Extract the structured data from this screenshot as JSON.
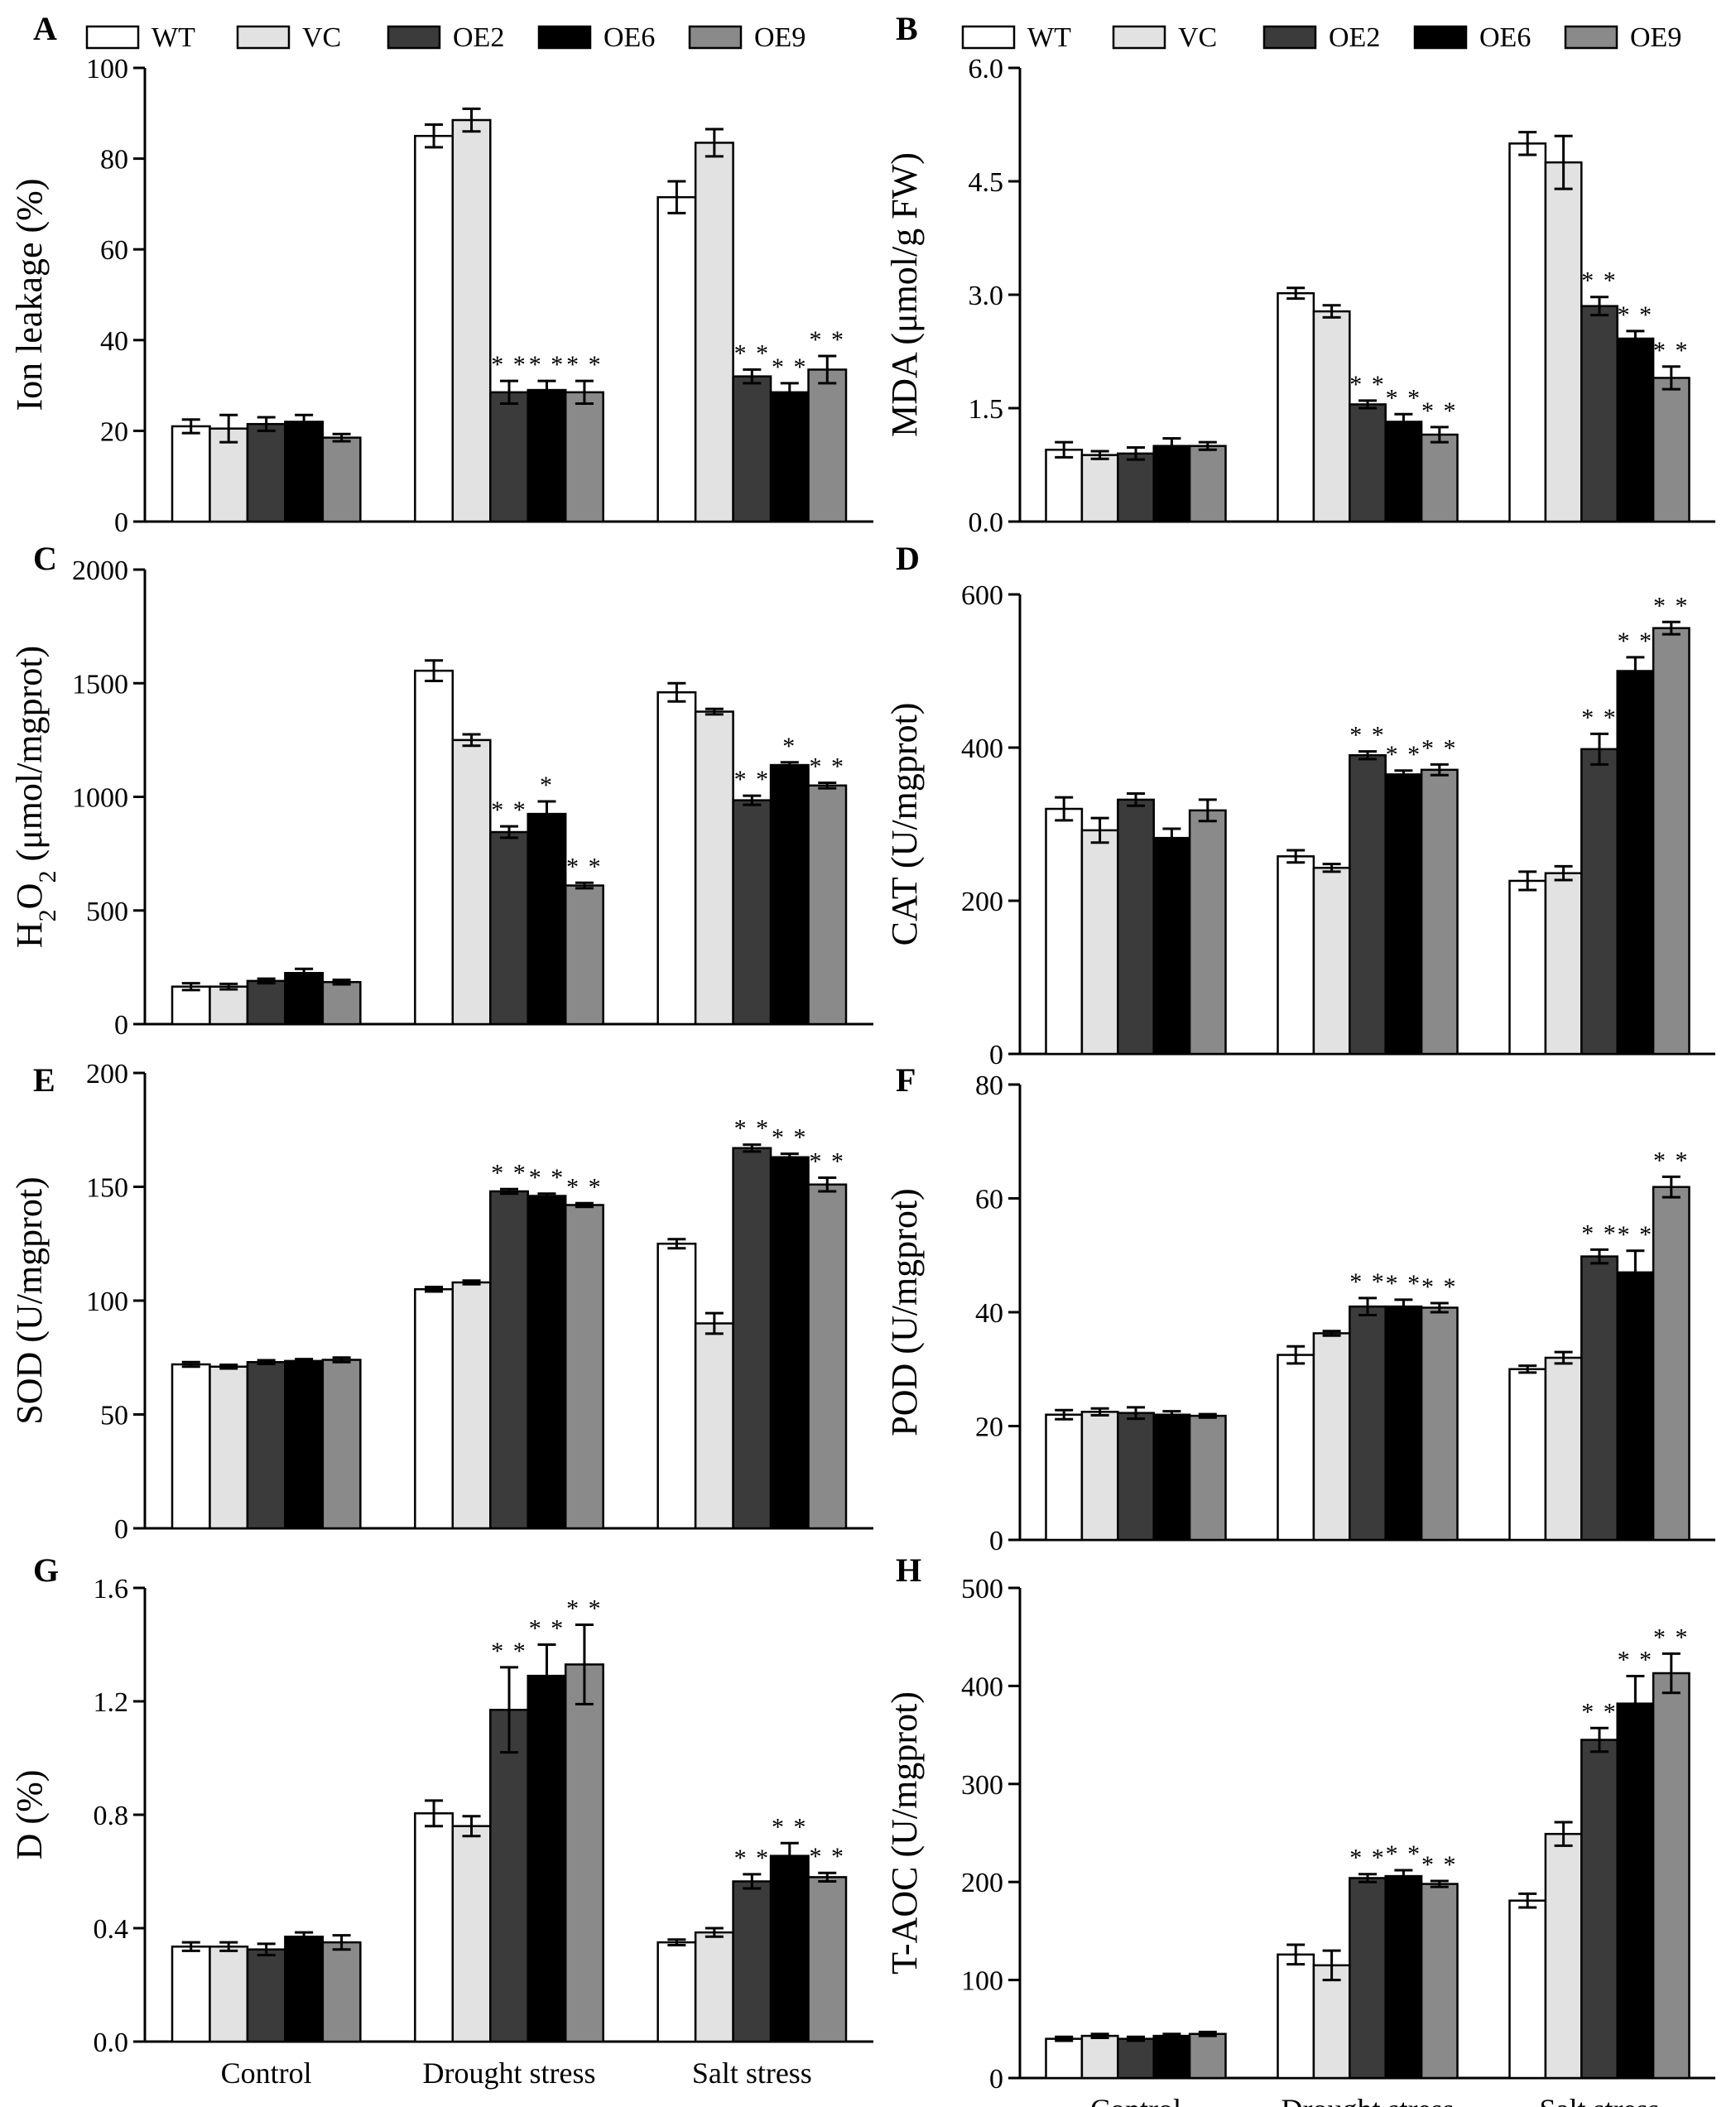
{
  "legend": [
    {
      "name": "WT",
      "color": "#ffffff"
    },
    {
      "name": "VC",
      "color": "#e2e2e2"
    },
    {
      "name": "OE2",
      "color": "#3b3b3b"
    },
    {
      "name": "OE6",
      "color": "#000000"
    },
    {
      "name": "OE9",
      "color": "#8a8a8a"
    }
  ],
  "categories": [
    "Control",
    "Drought stress",
    "Salt stress"
  ],
  "chart_data": [
    {
      "type": "bar",
      "panel": "A",
      "ylabel": "Ion leakage (%)",
      "ylim": [
        0,
        100
      ],
      "yticks": [
        "0",
        "20",
        "40",
        "60",
        "80",
        "100"
      ],
      "values": [
        [
          21,
          20.5,
          21.5,
          22,
          18.5
        ],
        [
          85,
          88.5,
          28.5,
          29,
          28.5
        ],
        [
          71.5,
          83.5,
          32,
          28.5,
          33.5
        ]
      ],
      "errors": [
        [
          1.5,
          3,
          1.5,
          1.5,
          0.8
        ],
        [
          2.5,
          2.5,
          2.5,
          2,
          2.5
        ],
        [
          3.5,
          3,
          1.5,
          2,
          3
        ]
      ],
      "marks": [
        [
          "",
          "",
          "",
          "",
          ""
        ],
        [
          "",
          "",
          "**",
          "**",
          "**"
        ],
        [
          "",
          "",
          "**",
          "**",
          "**"
        ]
      ]
    },
    {
      "type": "bar",
      "panel": "B",
      "ylabel": "MDA (μmol/g FW)",
      "ylim": [
        0,
        6
      ],
      "yticks": [
        "0.0",
        "1.5",
        "3.0",
        "4.5",
        "6.0"
      ],
      "values": [
        [
          0.95,
          0.88,
          0.9,
          1.0,
          1.0
        ],
        [
          3.02,
          2.78,
          1.55,
          1.32,
          1.15
        ],
        [
          5.0,
          4.75,
          2.85,
          2.42,
          1.9
        ]
      ],
      "errors": [
        [
          0.1,
          0.05,
          0.08,
          0.1,
          0.05
        ],
        [
          0.07,
          0.08,
          0.05,
          0.1,
          0.1
        ],
        [
          0.15,
          0.35,
          0.12,
          0.1,
          0.15
        ]
      ],
      "marks": [
        [
          "",
          "",
          "",
          "",
          ""
        ],
        [
          "",
          "",
          "**",
          "**",
          "**"
        ],
        [
          "",
          "",
          "**",
          "**",
          "**"
        ]
      ]
    },
    {
      "type": "bar",
      "panel": "C",
      "ylabel": "H2O2 (μmol/mgprot)",
      "ylim": [
        0,
        2000
      ],
      "yticks": [
        "0",
        "500",
        "1000",
        "1500",
        "2000"
      ],
      "values": [
        [
          165,
          165,
          190,
          225,
          185
        ],
        [
          1555,
          1250,
          845,
          925,
          610
        ],
        [
          1460,
          1375,
          985,
          1140,
          1050
        ]
      ],
      "errors": [
        [
          15,
          12,
          10,
          18,
          10
        ],
        [
          45,
          25,
          25,
          55,
          12
        ],
        [
          40,
          12,
          20,
          12,
          12
        ]
      ],
      "marks": [
        [
          "",
          "",
          "",
          "",
          ""
        ],
        [
          "",
          "",
          "**",
          "*",
          "**"
        ],
        [
          "",
          "",
          "**",
          "*",
          "**"
        ]
      ]
    },
    {
      "type": "bar",
      "panel": "D",
      "ylabel": "CAT (U/mgprot)",
      "ylim": [
        0,
        600
      ],
      "yticks": [
        "0",
        "200",
        "400",
        "600"
      ],
      "values": [
        [
          320,
          292,
          332,
          282,
          318
        ],
        [
          258,
          243,
          390,
          365,
          371
        ],
        [
          226,
          236,
          398,
          500,
          556
        ]
      ],
      "errors": [
        [
          15,
          16,
          8,
          12,
          14
        ],
        [
          8,
          5,
          5,
          5,
          7
        ],
        [
          12,
          9,
          20,
          18,
          8
        ]
      ],
      "marks": [
        [
          "",
          "",
          "",
          "",
          ""
        ],
        [
          "",
          "",
          "**",
          "**",
          "**"
        ],
        [
          "",
          "",
          "**",
          "**",
          "**"
        ]
      ]
    },
    {
      "type": "bar",
      "panel": "E",
      "ylabel": "SOD (U/mgprot)",
      "ylim": [
        0,
        200
      ],
      "yticks": [
        "0",
        "50",
        "100",
        "150",
        "200"
      ],
      "values": [
        [
          72,
          71,
          73,
          73.5,
          74
        ],
        [
          105,
          108,
          148,
          146,
          142
        ],
        [
          125,
          90,
          167,
          163,
          151
        ]
      ],
      "errors": [
        [
          1,
          0.8,
          0.8,
          0.8,
          1
        ],
        [
          1,
          0.8,
          1,
          1,
          0.8
        ],
        [
          2,
          4.5,
          1.5,
          1.5,
          3
        ]
      ],
      "marks": [
        [
          "",
          "",
          "",
          "",
          ""
        ],
        [
          "",
          "",
          "**",
          "**",
          "**"
        ],
        [
          "",
          "",
          "**",
          "**",
          "**"
        ]
      ]
    },
    {
      "type": "bar",
      "panel": "F",
      "ylabel": "POD (U/mgprot)",
      "ylim": [
        0,
        80
      ],
      "yticks": [
        "0",
        "20",
        "40",
        "60",
        "80"
      ],
      "values": [
        [
          22,
          22.5,
          22.3,
          22,
          21.8
        ],
        [
          32.5,
          36.3,
          41,
          41,
          40.8
        ],
        [
          30,
          32,
          49.8,
          47,
          62
        ]
      ],
      "errors": [
        [
          0.8,
          0.6,
          1,
          0.6,
          0.3
        ],
        [
          1.5,
          0.4,
          1.5,
          1.2,
          0.8
        ],
        [
          0.6,
          1,
          1.2,
          3.8,
          1.8
        ]
      ],
      "marks": [
        [
          "",
          "",
          "",
          "",
          ""
        ],
        [
          "",
          "",
          "**",
          "**",
          "**"
        ],
        [
          "",
          "",
          "**",
          "**",
          "**"
        ]
      ]
    },
    {
      "type": "bar",
      "panel": "G",
      "ylabel": "D (%)",
      "ylim": [
        0,
        1.6
      ],
      "yticks": [
        "0.0",
        "0.4",
        "0.8",
        "1.2",
        "1.6"
      ],
      "values": [
        [
          0.335,
          0.335,
          0.325,
          0.37,
          0.35
        ],
        [
          0.805,
          0.76,
          1.17,
          1.29,
          1.33
        ],
        [
          0.35,
          0.385,
          0.565,
          0.655,
          0.58
        ]
      ],
      "errors": [
        [
          0.015,
          0.015,
          0.02,
          0.015,
          0.025
        ],
        [
          0.045,
          0.035,
          0.15,
          0.11,
          0.14
        ],
        [
          0.01,
          0.015,
          0.025,
          0.045,
          0.015
        ]
      ],
      "marks": [
        [
          "",
          "",
          "",
          "",
          ""
        ],
        [
          "",
          "",
          "**",
          "**",
          "**"
        ],
        [
          "",
          "",
          "**",
          "**",
          "**"
        ]
      ]
    },
    {
      "type": "bar",
      "panel": "H",
      "ylabel": "T-AOC (U/mgprot)",
      "ylim": [
        0,
        500
      ],
      "yticks": [
        "0",
        "100",
        "200",
        "300",
        "400",
        "500"
      ],
      "values": [
        [
          40,
          43,
          40,
          43,
          45
        ],
        [
          126,
          115,
          204,
          206,
          198
        ],
        [
          181,
          249,
          345,
          382,
          413
        ]
      ],
      "errors": [
        [
          2,
          2,
          2,
          2,
          2
        ],
        [
          10,
          15,
          4,
          6,
          3
        ],
        [
          7,
          12,
          12,
          28,
          20
        ]
      ],
      "marks": [
        [
          "",
          "",
          "",
          "",
          ""
        ],
        [
          "",
          "",
          "**",
          "**",
          "**"
        ],
        [
          "",
          "",
          "**",
          "**",
          "**"
        ]
      ]
    }
  ]
}
